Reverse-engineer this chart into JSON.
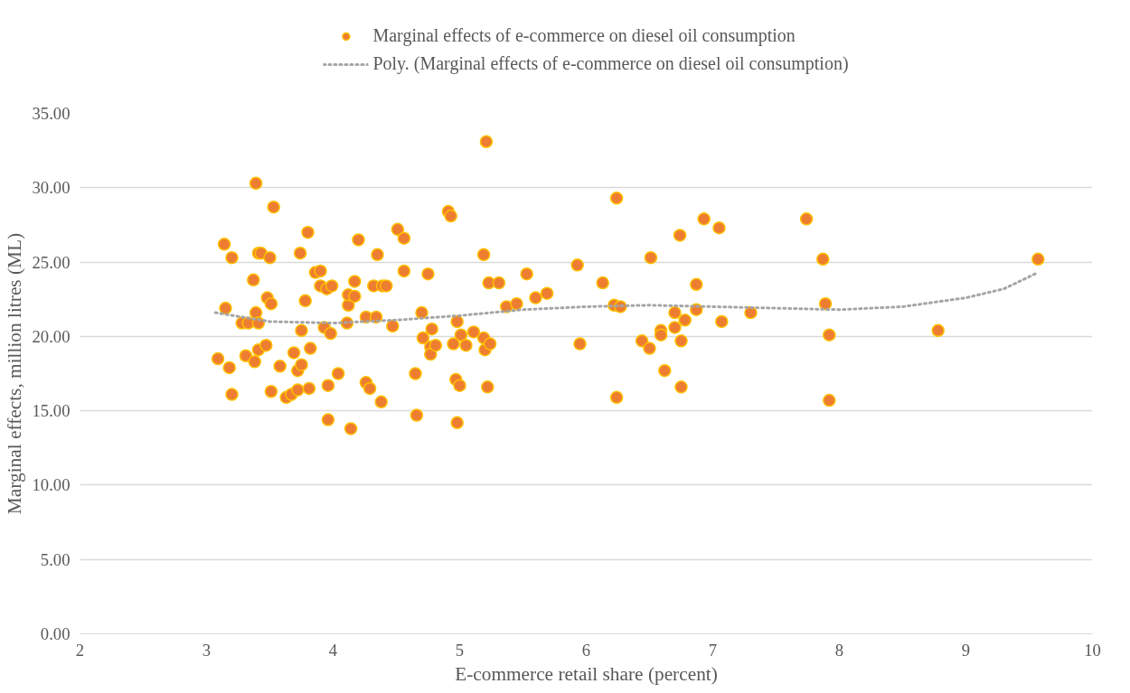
{
  "chart_data": {
    "type": "scatter",
    "xlabel": "E-commerce retail share (percent)",
    "ylabel": "Marginal effects, million litres (ML)",
    "xlim": [
      2,
      10
    ],
    "xticks": [
      2,
      3,
      4,
      5,
      6,
      7,
      8,
      9,
      10
    ],
    "ylim": [
      0,
      35
    ],
    "yticks": [
      {
        "value": 0,
        "label": "0.00"
      },
      {
        "value": 5,
        "label": "5.00"
      },
      {
        "value": 10,
        "label": "10.00"
      },
      {
        "value": 15,
        "label": "15.00"
      },
      {
        "value": 20,
        "label": "20.00"
      },
      {
        "value": 25,
        "label": "25.00"
      },
      {
        "value": 30,
        "label": "30.00"
      },
      {
        "value": 35,
        "label": "35.00"
      }
    ],
    "grid": "y",
    "legend": "top",
    "marker": "circle",
    "series": [
      {
        "name": "Marginal effects of e-commerce on diesel oil consumption",
        "color": "#ed7d31",
        "x": [
          3.09,
          3.14,
          3.15,
          3.2,
          3.18,
          3.2,
          3.28,
          3.31,
          3.33,
          3.37,
          3.38,
          3.39,
          3.39,
          3.41,
          3.41,
          3.41,
          3.43,
          3.47,
          3.48,
          3.5,
          3.51,
          3.51,
          3.53,
          3.58,
          3.63,
          3.67,
          3.69,
          3.72,
          3.72,
          3.75,
          3.75,
          3.74,
          3.78,
          3.8,
          3.81,
          3.82,
          3.86,
          3.9,
          3.9,
          3.95,
          3.93,
          3.96,
          3.96,
          3.98,
          3.99,
          4.04,
          4.11,
          4.12,
          4.12,
          4.14,
          4.17,
          4.17,
          4.2,
          4.26,
          4.26,
          4.29,
          4.32,
          4.34,
          4.35,
          4.39,
          4.38,
          4.42,
          4.47,
          4.51,
          4.56,
          4.56,
          4.65,
          4.66,
          4.7,
          4.71,
          4.75,
          4.77,
          4.77,
          4.78,
          4.81,
          4.91,
          4.93,
          4.95,
          4.97,
          4.98,
          4.98,
          5.0,
          5.01,
          5.05,
          5.11,
          5.19,
          5.19,
          5.2,
          5.22,
          5.23,
          5.24,
          5.21,
          5.31,
          5.37,
          5.45,
          5.53,
          5.6,
          5.69,
          5.93,
          5.95,
          6.13,
          6.24,
          6.22,
          6.27,
          6.24,
          6.44,
          6.5,
          6.51,
          6.59,
          6.59,
          6.62,
          6.7,
          6.7,
          6.74,
          6.75,
          6.75,
          6.78,
          6.87,
          6.87,
          6.93,
          7.05,
          7.07,
          7.3,
          7.74,
          7.87,
          7.89,
          7.92,
          7.92,
          8.78,
          9.57
        ],
        "values": [
          18.5,
          26.2,
          21.9,
          25.3,
          17.9,
          16.1,
          20.9,
          18.7,
          20.9,
          23.8,
          18.3,
          30.3,
          21.6,
          19.1,
          20.9,
          25.6,
          25.6,
          19.4,
          22.6,
          25.3,
          22.2,
          16.3,
          28.7,
          18.0,
          15.9,
          16.1,
          18.9,
          17.7,
          16.4,
          18.1,
          20.4,
          25.6,
          22.4,
          27.0,
          16.5,
          19.2,
          24.3,
          24.4,
          23.4,
          23.2,
          20.6,
          14.4,
          16.7,
          20.2,
          23.4,
          17.5,
          20.9,
          22.1,
          22.8,
          13.8,
          23.7,
          22.7,
          26.5,
          21.3,
          16.9,
          16.5,
          23.4,
          21.3,
          25.5,
          23.4,
          15.6,
          23.4,
          20.7,
          27.2,
          26.6,
          24.4,
          17.5,
          14.7,
          21.6,
          19.9,
          24.2,
          19.3,
          18.8,
          20.5,
          19.4,
          28.4,
          28.1,
          19.5,
          17.1,
          21.0,
          14.2,
          16.7,
          20.1,
          19.4,
          20.3,
          25.5,
          19.9,
          19.1,
          16.6,
          23.6,
          19.5,
          33.1,
          23.6,
          22.0,
          22.2,
          24.2,
          22.6,
          22.9,
          24.8,
          19.5,
          23.6,
          29.3,
          22.1,
          22.0,
          15.9,
          19.7,
          19.2,
          25.3,
          20.4,
          20.1,
          17.7,
          21.6,
          20.6,
          26.8,
          19.7,
          16.6,
          21.1,
          23.5,
          21.8,
          27.9,
          27.3,
          21.0,
          21.6,
          27.9,
          25.2,
          22.2,
          20.1,
          15.7,
          20.4,
          25.2
        ]
      },
      {
        "name": "Poly. (Marginal effects of e-commerce on diesel oil consumption)",
        "color": "#a5a5a5",
        "type": "line",
        "line_style": "dotted",
        "marker": "none",
        "x": [
          3.07,
          3.5,
          4.0,
          4.5,
          5.0,
          5.5,
          6.0,
          6.5,
          7.0,
          7.5,
          8.0,
          8.5,
          9.0,
          9.3,
          9.57
        ],
        "values": [
          21.6,
          21.0,
          20.9,
          21.1,
          21.4,
          21.8,
          22.0,
          22.1,
          22.0,
          21.9,
          21.8,
          22.0,
          22.6,
          23.2,
          24.3
        ]
      }
    ]
  }
}
